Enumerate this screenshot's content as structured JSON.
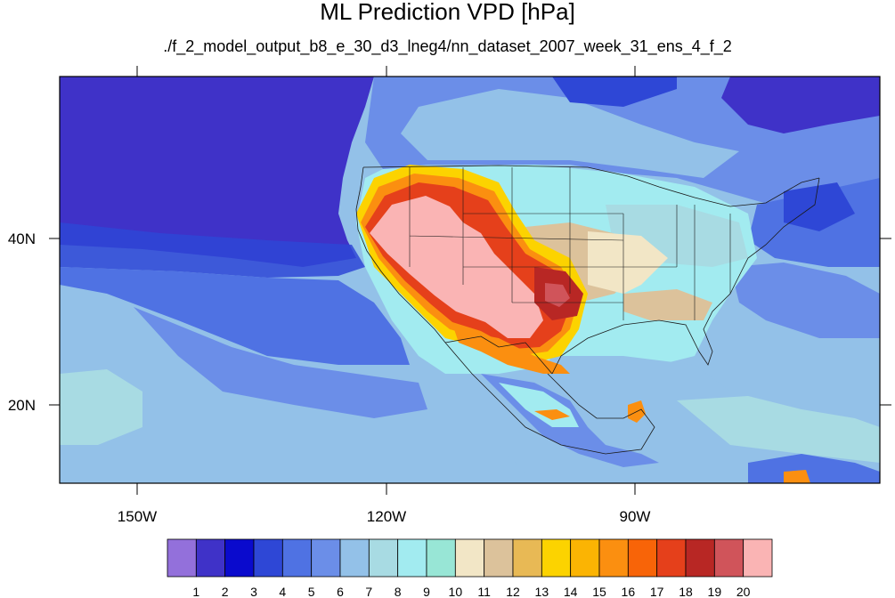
{
  "title": "ML Prediction VPD [hPa]",
  "subtitle": "./f_2_model_output_b8_e_30_d3_lneg4/nn_dataset_2007_week_31_ens_4_f_2",
  "map": {
    "lon_ticks": [
      "150W",
      "120W",
      "90W"
    ],
    "lat_ticks": [
      "40N",
      "20N"
    ]
  },
  "colorbar": {
    "labels": [
      "1",
      "2",
      "3",
      "4",
      "5",
      "6",
      "7",
      "8",
      "9",
      "10",
      "11",
      "12",
      "13",
      "14",
      "15",
      "16",
      "17",
      "18",
      "19",
      "20"
    ],
    "colors": [
      "#9370db",
      "#3f32c8",
      "#0a0acd",
      "#2e47d6",
      "#4f72e3",
      "#6b8ee8",
      "#93c1e8",
      "#a8dbe3",
      "#a2ebf0",
      "#98e6d6",
      "#f2e6c6",
      "#dcc29b",
      "#e8b955",
      "#fcd300",
      "#fbb403",
      "#fb8f10",
      "#f86408",
      "#e5401b",
      "#b82724",
      "#d0545a",
      "#fab4b4"
    ]
  }
}
